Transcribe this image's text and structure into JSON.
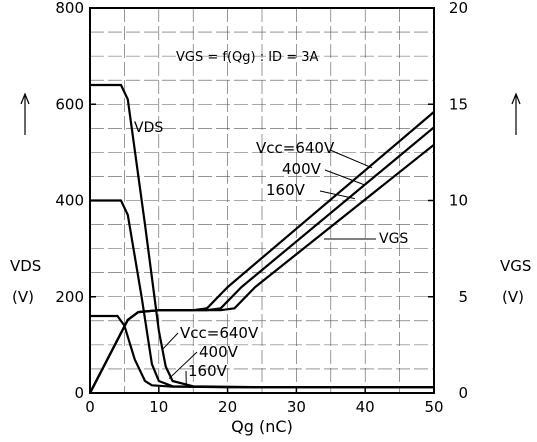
{
  "chart_data": {
    "type": "line",
    "annotation": "VGS = f(Qg) : ID = 3A",
    "x_axis": {
      "label": "Qg (nC)",
      "range": [
        0,
        50
      ],
      "ticks": [
        0,
        10,
        20,
        30,
        40,
        50
      ],
      "tick_labels": [
        "0",
        "10",
        "20",
        "30",
        "40",
        "50"
      ]
    },
    "y_left": {
      "label": "VDS",
      "unit": "(V)",
      "range": [
        0,
        800
      ],
      "ticks": [
        0,
        200,
        400,
        600,
        800
      ],
      "tick_labels": [
        "0",
        "200",
        "400",
        "600",
        "800"
      ]
    },
    "y_right": {
      "label": "VGS",
      "unit": "(V)",
      "range": [
        0,
        20
      ],
      "ticks": [
        0,
        5,
        10,
        15,
        20
      ],
      "tick_labels": [
        "0",
        "5",
        "10",
        "15",
        "20"
      ]
    },
    "grid": true,
    "series": [
      {
        "name": "VDS",
        "condition": "Vcc=640V",
        "axis": "left",
        "x": [
          0,
          4.5,
          5.5,
          8,
          10,
          11,
          12,
          15,
          25,
          50
        ],
        "y": [
          640,
          640,
          610,
          350,
          130,
          55,
          25,
          14,
          12,
          12
        ]
      },
      {
        "name": "VDS",
        "condition": "400V",
        "axis": "left",
        "x": [
          0,
          4.5,
          5.5,
          7.5,
          9,
          10,
          12,
          20,
          50
        ],
        "y": [
          400,
          400,
          370,
          200,
          60,
          25,
          14,
          12,
          12
        ]
      },
      {
        "name": "VDS",
        "condition": "160V",
        "axis": "left",
        "x": [
          0,
          4,
          5,
          6.5,
          8,
          9,
          12,
          20,
          50
        ],
        "y": [
          160,
          160,
          140,
          70,
          25,
          16,
          13,
          12,
          12
        ]
      },
      {
        "name": "VGS",
        "condition": "Vcc=640V",
        "axis": "right",
        "x": [
          0,
          5.5,
          7,
          10,
          15,
          17,
          20,
          50
        ],
        "y": [
          0,
          3.8,
          4.2,
          4.3,
          4.3,
          4.4,
          5.5,
          14.6
        ]
      },
      {
        "name": "VGS",
        "condition": "400V",
        "axis": "right",
        "x": [
          0,
          5.5,
          7,
          10,
          17,
          19,
          22,
          50
        ],
        "y": [
          0,
          3.8,
          4.2,
          4.3,
          4.3,
          4.4,
          5.5,
          13.8
        ]
      },
      {
        "name": "VGS",
        "condition": "160V",
        "axis": "right",
        "x": [
          0,
          5.5,
          7,
          10,
          19,
          21,
          24,
          50
        ],
        "y": [
          0,
          3.8,
          4.2,
          4.3,
          4.3,
          4.4,
          5.5,
          12.9
        ]
      }
    ],
    "labels": {
      "vds": "VDS",
      "vgs": "VGS",
      "vgs_conditions": [
        "Vcc=640V",
        "400V",
        "160V"
      ],
      "vds_conditions": [
        "Vcc=640V",
        "400V",
        "160V"
      ]
    }
  }
}
